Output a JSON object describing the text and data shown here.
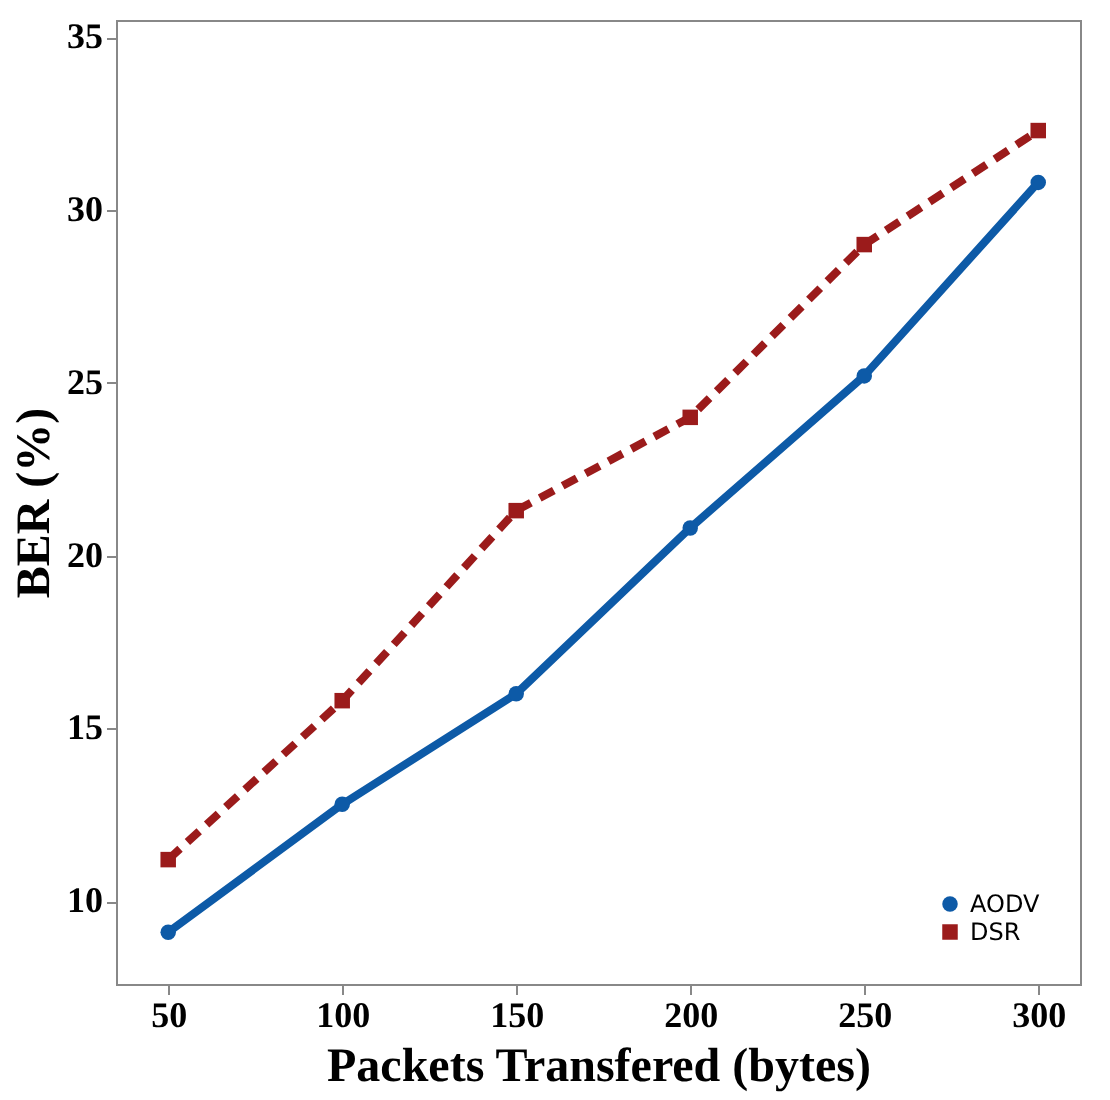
{
  "chart_data": {
    "type": "line",
    "xlabel": "Packets Transfered (bytes)",
    "ylabel": "BER (%)",
    "x": [
      50,
      100,
      150,
      200,
      250,
      300
    ],
    "series": [
      {
        "name": "AODV",
        "color": "#0d5aa7",
        "values": [
          9.1,
          12.8,
          16.0,
          20.8,
          25.2,
          30.8
        ],
        "marker": "circle",
        "line_style": "solid"
      },
      {
        "name": "DSR",
        "color": "#9b1b1b",
        "values": [
          11.2,
          15.8,
          21.3,
          24.0,
          29.0,
          32.3
        ],
        "marker": "square",
        "line_style": "dashed"
      }
    ],
    "xlim": [
      35,
      312
    ],
    "xticks": [
      50,
      100,
      150,
      200,
      250,
      300
    ],
    "ylim": [
      7.6,
      35.5
    ],
    "yticks": [
      10,
      15,
      20,
      25,
      30,
      35
    ],
    "grid": false,
    "legend": "bottom right"
  }
}
